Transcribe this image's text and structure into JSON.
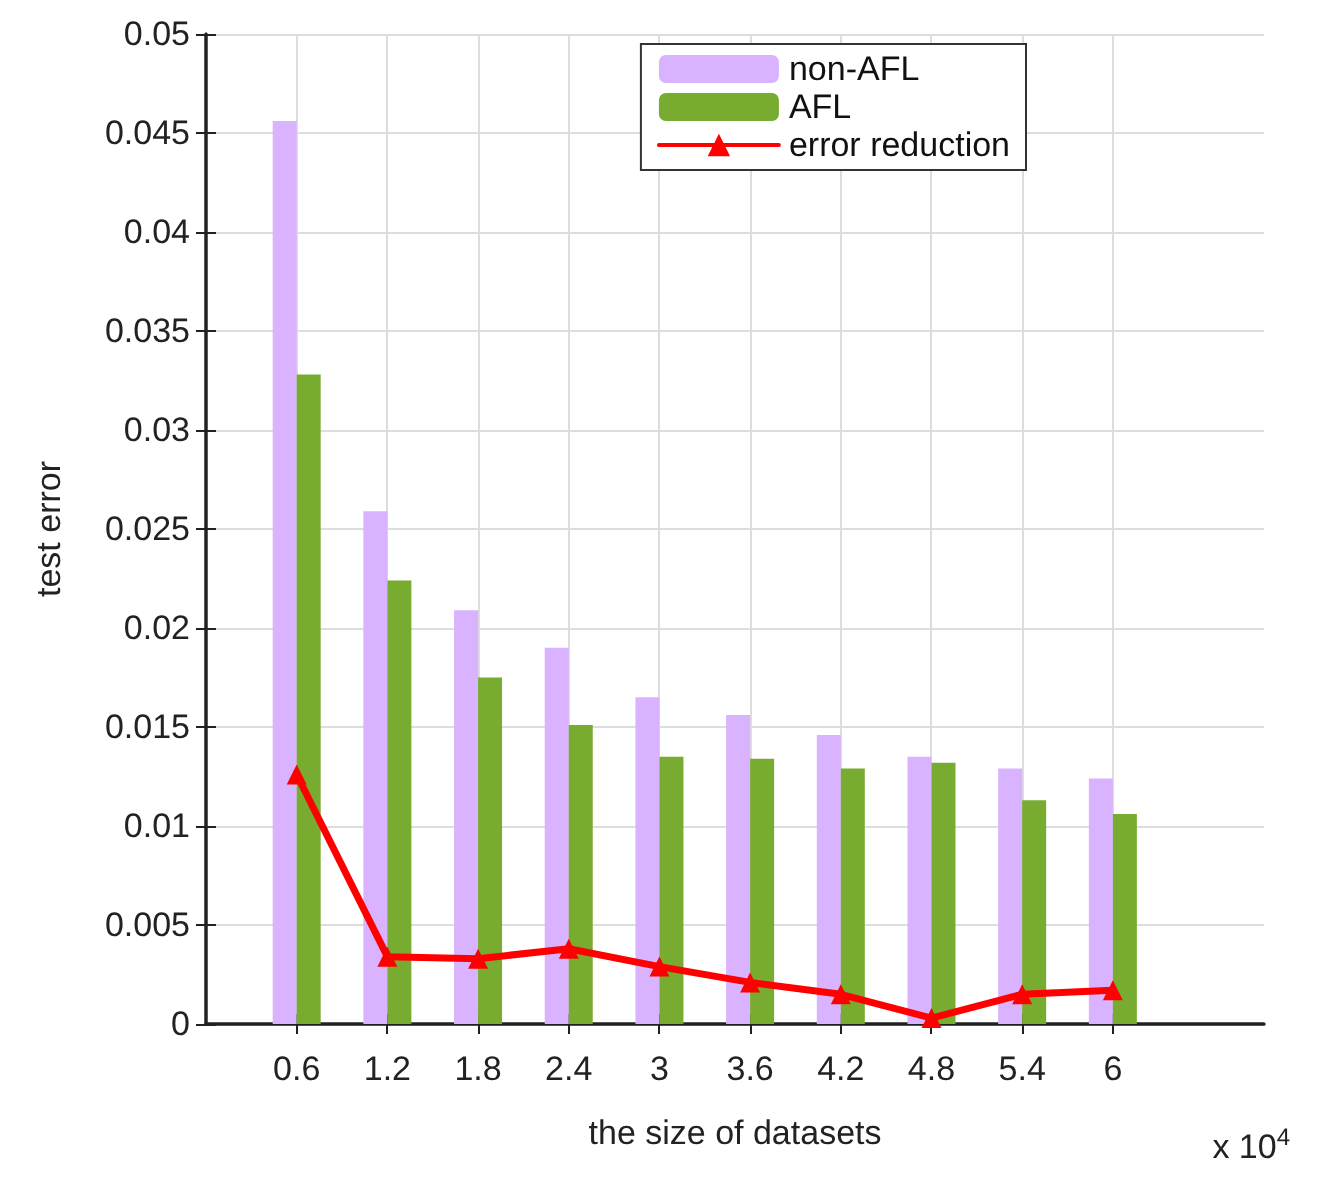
{
  "chart_data": {
    "type": "bar",
    "xlabel": "the size of datasets",
    "ylabel": "test error",
    "annotations": [
      "x 10$^{4}$"
    ],
    "x": [
      0.6,
      1.2,
      1.8,
      2.4,
      3,
      3.6,
      4.2,
      4.8,
      5.4,
      6
    ],
    "series": [
      {
        "name": "non-AFL",
        "color": "#d9b3ff",
        "values": [
          0.0456,
          0.0259,
          0.0209,
          0.019,
          0.0165,
          0.0156,
          0.0146,
          0.0135,
          0.0129,
          0.0124
        ]
      },
      {
        "name": "AFL",
        "color": "#77ac30",
        "values": [
          0.0328,
          0.0224,
          0.0175,
          0.0151,
          0.0135,
          0.0134,
          0.0129,
          0.0132,
          0.0113,
          0.0106
        ]
      },
      {
        "name": "error reduction",
        "type": "line",
        "color": "#ff0000",
        "marker": "triangle",
        "line_style": "solid",
        "values": [
          0.0126,
          0.0034,
          0.0033,
          0.0038,
          0.0029,
          0.0021,
          0.0015,
          0.0003,
          0.0015,
          0.0017
        ]
      }
    ],
    "xlim": [
      0,
      7
    ],
    "xticks": [
      0.6,
      1.2,
      1.8,
      2.4,
      3,
      3.6,
      4.2,
      4.8,
      5.4,
      6
    ],
    "ylim": [
      0,
      0.05
    ],
    "yticks": [
      0,
      0.005,
      0.01,
      0.015,
      0.02,
      0.025,
      0.03,
      0.035,
      0.04,
      0.045,
      0.05
    ],
    "grid": true,
    "legend": "top right"
  }
}
